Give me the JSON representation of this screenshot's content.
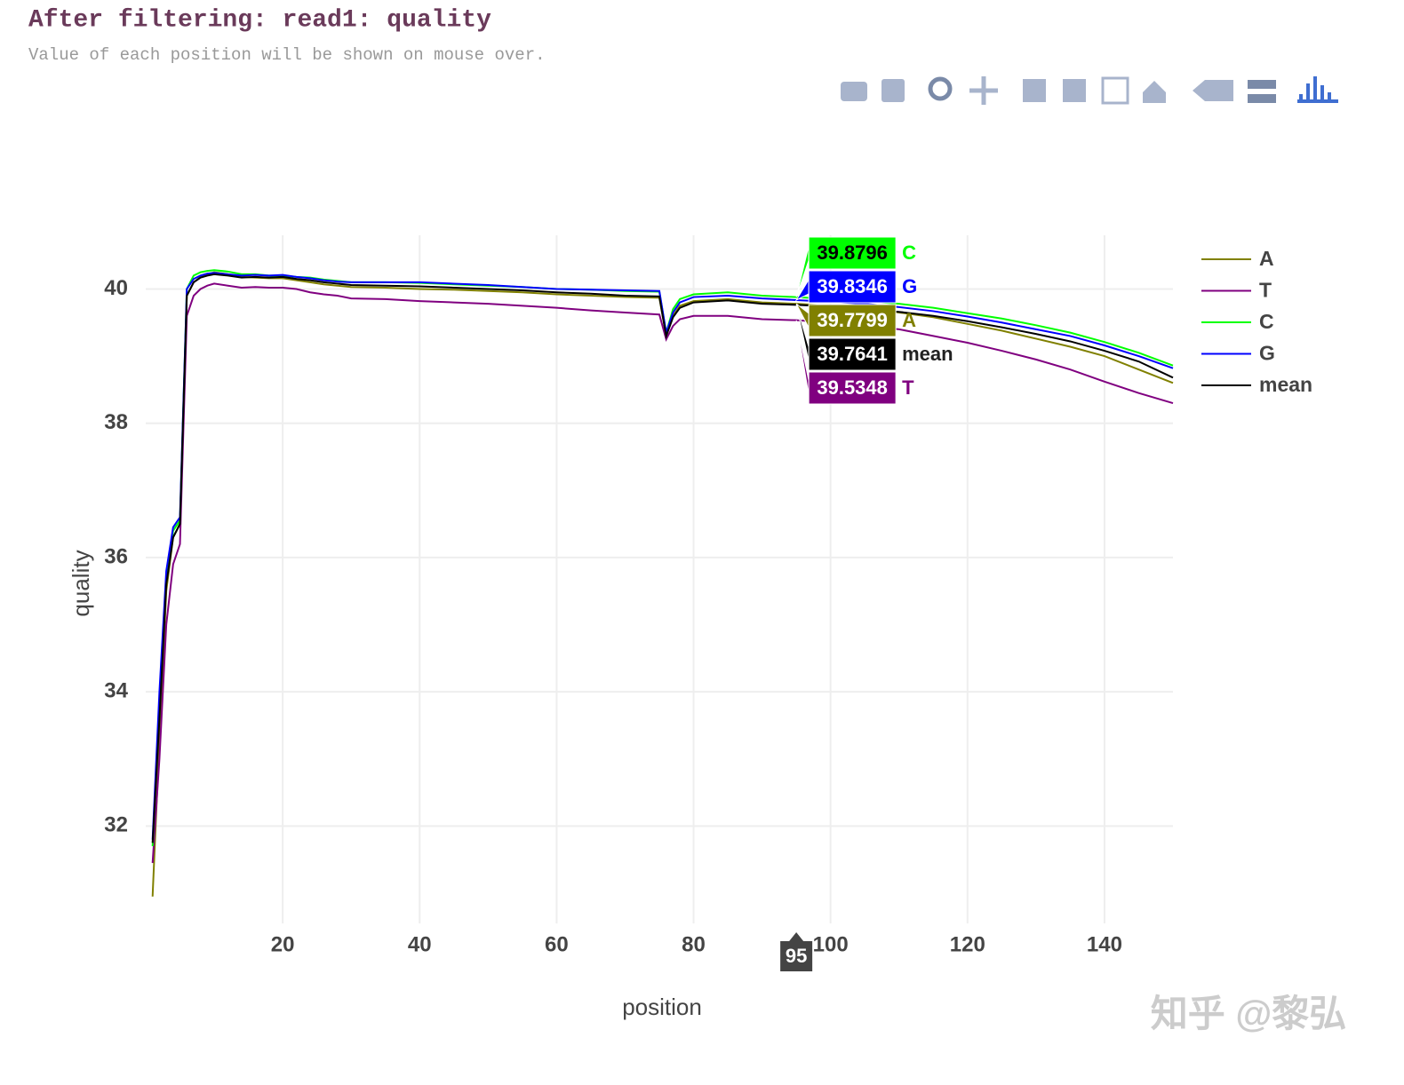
{
  "header": {
    "title": "After filtering: read1: quality",
    "subtitle": "Value of each position will be shown on mouse over.",
    "watermark": "知乎 @黎弘"
  },
  "chart_data": {
    "type": "line",
    "x_label": "position",
    "y_label": "quality",
    "x": [
      1,
      2,
      3,
      4,
      5,
      6,
      7,
      8,
      9,
      10,
      12,
      14,
      16,
      18,
      20,
      22,
      24,
      26,
      28,
      30,
      35,
      40,
      45,
      50,
      55,
      60,
      65,
      70,
      75,
      76,
      77,
      78,
      80,
      85,
      90,
      95,
      100,
      105,
      110,
      115,
      120,
      125,
      130,
      135,
      140,
      145,
      150
    ],
    "series": [
      {
        "name": "A",
        "color": "#808000",
        "values": [
          30.95,
          33.3,
          35.5,
          36.3,
          36.5,
          39.9,
          40.1,
          40.18,
          40.22,
          40.25,
          40.22,
          40.18,
          40.17,
          40.16,
          40.16,
          40.13,
          40.1,
          40.07,
          40.05,
          40.03,
          40.02,
          40.0,
          39.99,
          39.97,
          39.95,
          39.92,
          39.9,
          39.88,
          39.87,
          39.3,
          39.6,
          39.75,
          39.82,
          39.85,
          39.8,
          39.7799,
          39.75,
          39.71,
          39.65,
          39.58,
          39.48,
          39.38,
          39.26,
          39.14,
          39.0,
          38.8,
          38.6
        ]
      },
      {
        "name": "T",
        "color": "#800080",
        "values": [
          31.45,
          33.0,
          35.0,
          35.9,
          36.2,
          39.6,
          39.9,
          40.0,
          40.05,
          40.08,
          40.05,
          40.02,
          40.03,
          40.02,
          40.02,
          40.0,
          39.95,
          39.92,
          39.9,
          39.86,
          39.85,
          39.82,
          39.8,
          39.78,
          39.75,
          39.72,
          39.68,
          39.65,
          39.62,
          39.25,
          39.45,
          39.55,
          39.6,
          39.6,
          39.55,
          39.5348,
          39.5,
          39.45,
          39.4,
          39.3,
          39.2,
          39.08,
          38.95,
          38.8,
          38.62,
          38.45,
          38.3
        ]
      },
      {
        "name": "C",
        "color": "#00ff00",
        "values": [
          31.7,
          33.8,
          35.7,
          36.4,
          36.55,
          40.0,
          40.2,
          40.25,
          40.27,
          40.28,
          40.26,
          40.22,
          40.22,
          40.2,
          40.2,
          40.18,
          40.17,
          40.14,
          40.12,
          40.1,
          40.1,
          40.09,
          40.07,
          40.05,
          40.03,
          40.0,
          39.99,
          39.97,
          39.96,
          39.35,
          39.7,
          39.85,
          39.92,
          39.95,
          39.9,
          39.8796,
          39.85,
          39.82,
          39.78,
          39.72,
          39.64,
          39.56,
          39.46,
          39.35,
          39.21,
          39.05,
          38.86
        ]
      },
      {
        "name": "G",
        "color": "#0000ff",
        "values": [
          31.8,
          34.0,
          35.8,
          36.45,
          36.6,
          40.0,
          40.15,
          40.2,
          40.23,
          40.24,
          40.22,
          40.2,
          40.21,
          40.2,
          40.21,
          40.18,
          40.16,
          40.13,
          40.11,
          40.1,
          40.1,
          40.1,
          40.08,
          40.06,
          40.03,
          40.0,
          39.99,
          39.98,
          39.97,
          39.35,
          39.65,
          39.8,
          39.88,
          39.9,
          39.86,
          39.8346,
          39.81,
          39.78,
          39.73,
          39.67,
          39.59,
          39.5,
          39.4,
          39.3,
          39.16,
          39.0,
          38.82
        ]
      },
      {
        "name": "mean",
        "color": "#000000",
        "values": [
          31.75,
          33.6,
          35.6,
          36.3,
          36.5,
          39.9,
          40.1,
          40.17,
          40.2,
          40.22,
          40.2,
          40.17,
          40.18,
          40.17,
          40.18,
          40.15,
          40.13,
          40.1,
          40.08,
          40.06,
          40.05,
          40.04,
          40.02,
          40.0,
          39.98,
          39.95,
          39.93,
          39.9,
          39.89,
          39.3,
          39.58,
          39.72,
          39.8,
          39.83,
          39.78,
          39.7641,
          39.74,
          39.71,
          39.66,
          39.6,
          39.52,
          39.43,
          39.33,
          39.22,
          39.08,
          38.92,
          38.68
        ]
      }
    ],
    "xlim": [
      0,
      150
    ],
    "ylim": [
      30.55,
      40.8
    ],
    "xticks": [
      20,
      40,
      60,
      80,
      100,
      120,
      140
    ],
    "yticks": [
      32,
      34,
      36,
      38,
      40
    ],
    "grid": true,
    "legend": "right",
    "hover": {
      "x": 95
    }
  }
}
